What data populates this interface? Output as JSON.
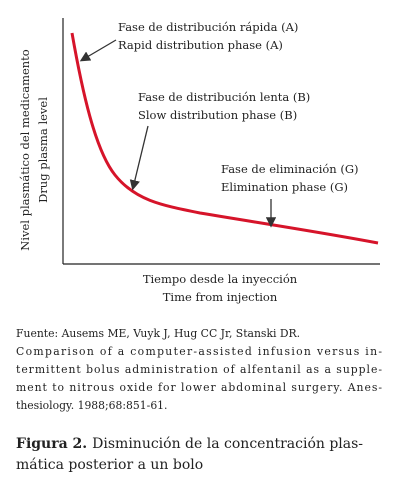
{
  "figure": {
    "annotations": [
      {
        "lines": [
          "Fase de distribución rápida (A)",
          "Rapid distribution phase (A)"
        ]
      },
      {
        "lines": [
          "Fase de distribución lenta (B)",
          "Slow distribution phase (B)"
        ]
      },
      {
        "lines": [
          "Fase de eliminación (G)",
          "Elimination phase (G)"
        ]
      }
    ],
    "y_axis_label": [
      "Nivel plasmático del medicamento",
      "Drug plasma level"
    ],
    "x_axis_label": [
      "Tiempo desde la inyección",
      "Time from injection"
    ]
  },
  "source": {
    "lines": [
      "Fuente: Ausems ME, Vuyk J, Hug CC Jr, Stanski DR.",
      "Comparison of a computer-assisted infusion versus in-",
      "termittent bolus administration of alfentanil as a supple-",
      "ment to nitrous oxide for lower abdominal surgery. Anes-",
      "thesiology. 1988;68:851-61."
    ]
  },
  "caption": {
    "label": "Figura 2.",
    "lines": [
      "Disminución de la concentración plas-",
      "mática posterior a un bolo"
    ]
  }
}
